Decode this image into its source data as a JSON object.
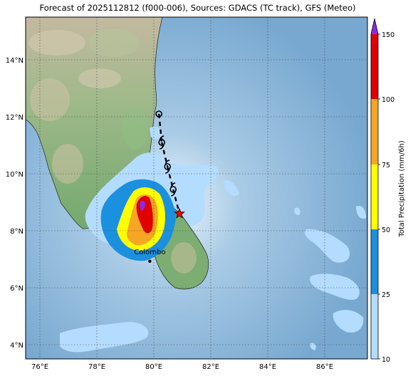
{
  "title": "Forecast of 2025112812 (f000-006), Sources: GDACS (TC track), GFS (Meteo)",
  "map": {
    "lon_range": [
      75.5,
      87.5
    ],
    "lat_range": [
      3.5,
      15.5
    ],
    "lon_ticks": [
      "76°E",
      "78°E",
      "80°E",
      "82°E",
      "84°E",
      "86°E"
    ],
    "lat_ticks": [
      "4°N",
      "6°N",
      "8°N",
      "10°N",
      "12°N",
      "14°N"
    ],
    "city": {
      "name": "Colombo",
      "lon": 79.86,
      "lat": 6.93
    },
    "track": {
      "positions": [
        {
          "lon": 80.18,
          "lat": 12.1
        },
        {
          "lon": 80.28,
          "lat": 11.1
        },
        {
          "lon": 80.48,
          "lat": 10.25
        },
        {
          "lon": 80.68,
          "lat": 9.45
        }
      ],
      "current": {
        "lon": 80.9,
        "lat": 8.6
      },
      "symbol_colors": {
        "track": "#000000",
        "current": "#ff0000"
      }
    }
  },
  "colorbar": {
    "label": "Total Precipitation (mm/6h)",
    "ticks": [
      "10",
      "25",
      "50",
      "75",
      "100",
      "150"
    ],
    "colors": [
      "#b4dcff",
      "#1a90df",
      "#ffff00",
      "#f5a623",
      "#e00000",
      "#8a2be2"
    ]
  }
}
